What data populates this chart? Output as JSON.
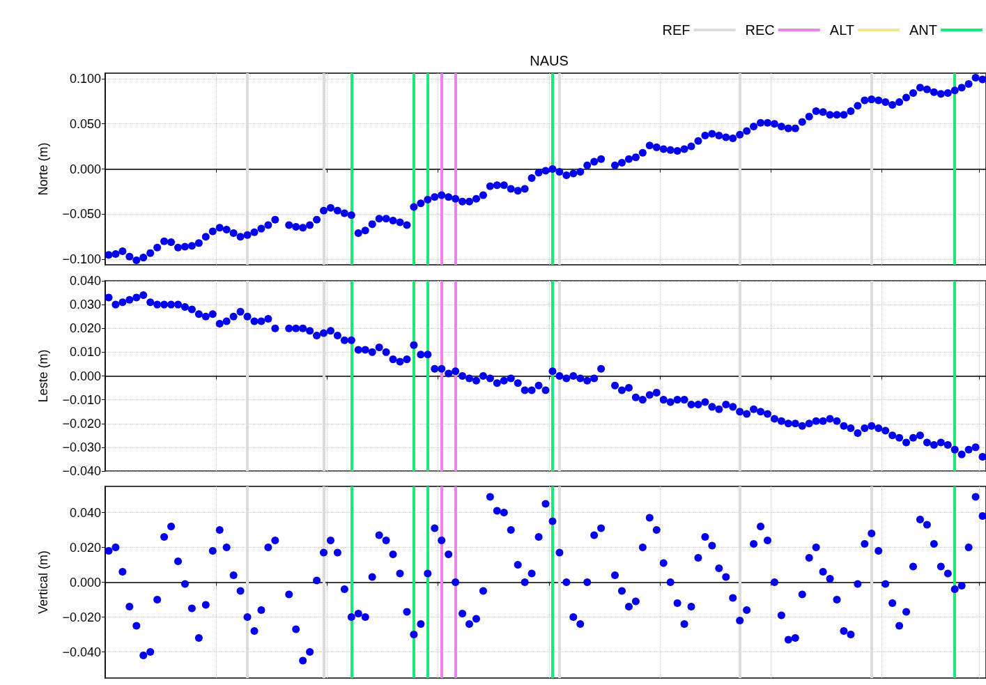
{
  "chart_data": [
    {
      "type": "scatter",
      "title": "NAUS",
      "ylabel": "Norte (m)",
      "legend": "top right",
      "grid": true,
      "marker": "circle",
      "tick_labels": "y",
      "categories": [
        null,
        null,
        null,
        null,
        null,
        null,
        null,
        null,
        null,
        null,
        null,
        null,
        null,
        null,
        null,
        null,
        null,
        null,
        null,
        null,
        null,
        null,
        null,
        null,
        null,
        null,
        null,
        null,
        null,
        null,
        null,
        null,
        null,
        null,
        null,
        null,
        null,
        null,
        null,
        null,
        null,
        null,
        null,
        null,
        null,
        null,
        null,
        null,
        null,
        null,
        null,
        null,
        null,
        null,
        null,
        null,
        null,
        null,
        null,
        null,
        null,
        null,
        null,
        null,
        null,
        null,
        null,
        null,
        null,
        null,
        null,
        null,
        null,
        null,
        null,
        null,
        null,
        null,
        null,
        null,
        null,
        null,
        null,
        null,
        null,
        null,
        null,
        null,
        null,
        null,
        null,
        null,
        null,
        null,
        null,
        null,
        null,
        null,
        null,
        null,
        null,
        null,
        null,
        null,
        null,
        null,
        null,
        null,
        null,
        null,
        null,
        null,
        null,
        null,
        null,
        null,
        null,
        null,
        null,
        null,
        null,
        null,
        null,
        null,
        null,
        null,
        null
      ],
      "ylim": [
        -0.106,
        0.106
      ],
      "yticks": [
        {
          "value": -0.1,
          "label": "−0.100"
        },
        {
          "value": -0.05,
          "label": "−0.050"
        },
        {
          "value": 0,
          "label": "0.000"
        },
        {
          "value": 0.05,
          "label": "0.050"
        },
        {
          "value": 0.1,
          "label": "0.100"
        }
      ],
      "series": [
        {
          "name": "REF",
          "type": "line",
          "color": "#dcdcdc",
          "values": [
            null,
            null,
            null,
            null,
            null,
            null,
            null,
            null,
            null,
            null,
            null,
            null,
            null,
            null,
            null,
            null,
            null,
            null,
            null,
            null,
            null,
            null,
            null,
            null,
            null,
            null,
            null,
            null,
            null,
            null,
            null,
            null,
            null,
            null,
            null,
            null,
            null,
            null,
            null,
            null,
            null,
            null,
            null,
            null,
            null,
            null,
            null,
            null,
            null,
            null,
            null,
            null,
            null,
            null,
            null,
            null,
            null,
            null,
            null,
            null,
            null,
            null,
            null,
            null,
            null,
            null,
            null,
            null,
            null,
            null,
            null,
            null,
            null,
            null,
            null,
            null,
            null,
            null,
            null,
            null,
            null,
            null,
            null,
            null,
            null,
            null,
            null,
            null,
            null,
            null,
            null,
            null,
            null,
            null,
            null,
            null,
            null,
            null,
            null,
            null,
            null,
            null,
            null,
            null,
            null,
            null,
            null,
            null,
            null,
            null,
            null,
            null,
            null,
            null,
            null,
            null,
            null,
            null,
            null,
            null,
            null,
            null,
            null,
            null,
            null,
            null,
            null
          ]
        },
        {
          "name": "REC",
          "type": "line",
          "color": "#ee82ee",
          "values": [
            null,
            null,
            null,
            null,
            null,
            null,
            null,
            null,
            null,
            null,
            null,
            null,
            null,
            null,
            null,
            null,
            null,
            null,
            null,
            null,
            null,
            null,
            null,
            null,
            null,
            null,
            null,
            null,
            null,
            null,
            null,
            null,
            null,
            null,
            null,
            null,
            null,
            null,
            null,
            null,
            null,
            null,
            null,
            null,
            null,
            null,
            null,
            null,
            null,
            null,
            null,
            null,
            null,
            null,
            null,
            null,
            null,
            null,
            null,
            null,
            null,
            null,
            null,
            null,
            null,
            null,
            null,
            null,
            null,
            null,
            null,
            null,
            null,
            null,
            null,
            null,
            null,
            null,
            null,
            null,
            null,
            null,
            null,
            null,
            null,
            null,
            null,
            null,
            null,
            null,
            null,
            null,
            null,
            null,
            null,
            null,
            null,
            null,
            null,
            null,
            null,
            null,
            null,
            null,
            null,
            null,
            null,
            null,
            null,
            null,
            null,
            null,
            null,
            null,
            null,
            null,
            null,
            null,
            null,
            null,
            null,
            null,
            null,
            null,
            null,
            null,
            null
          ]
        },
        {
          "name": "ALT",
          "type": "line",
          "color": "#f0e68c",
          "values": [
            null,
            null,
            null,
            null,
            null,
            null,
            null,
            null,
            null,
            null,
            null,
            null,
            null,
            null,
            null,
            null,
            null,
            null,
            null,
            null,
            null,
            null,
            null,
            null,
            null,
            null,
            null,
            null,
            null,
            null,
            null,
            null,
            null,
            null,
            null,
            null,
            null,
            null,
            null,
            null,
            null,
            null,
            null,
            null,
            null,
            null,
            null,
            null,
            null,
            null,
            null,
            null,
            null,
            null,
            null,
            null,
            null,
            null,
            null,
            null,
            null,
            null,
            null,
            null,
            null,
            null,
            null,
            null,
            null,
            null,
            null,
            null,
            null,
            null,
            null,
            null,
            null,
            null,
            null,
            null,
            null,
            null,
            null,
            null,
            null,
            null,
            null,
            null,
            null,
            null,
            null,
            null,
            null,
            null,
            null,
            null,
            null,
            null,
            null,
            null,
            null,
            null,
            null,
            null,
            null,
            null,
            null,
            null,
            null,
            null,
            null,
            null,
            null,
            null,
            null,
            null,
            null,
            null,
            null,
            null,
            null,
            null,
            null,
            null,
            null,
            null,
            null
          ]
        },
        {
          "name": "ANT",
          "type": "line",
          "color": "#1ee87a",
          "values": [
            null,
            null,
            null,
            null,
            null,
            null,
            null,
            null,
            null,
            null,
            null,
            null,
            null,
            null,
            null,
            null,
            null,
            null,
            null,
            null,
            null,
            null,
            null,
            null,
            null,
            null,
            null,
            null,
            null,
            null,
            null,
            null,
            null,
            null,
            null,
            null,
            null,
            null,
            null,
            null,
            null,
            null,
            null,
            null,
            null,
            null,
            null,
            null,
            null,
            null,
            null,
            null,
            null,
            null,
            null,
            null,
            null,
            null,
            null,
            null,
            null,
            null,
            null,
            null,
            null,
            null,
            null,
            null,
            null,
            null,
            null,
            null,
            null,
            null,
            null,
            null,
            null,
            null,
            null,
            null,
            null,
            null,
            null,
            null,
            null,
            null,
            null,
            null,
            null,
            null,
            null,
            null,
            null,
            null,
            null,
            null,
            null,
            null,
            null,
            null,
            null,
            null,
            null,
            null,
            null,
            null,
            null,
            null,
            null,
            null,
            null,
            null,
            null,
            null,
            null,
            null,
            null,
            null,
            null,
            null,
            null,
            null,
            null,
            null,
            null,
            null,
            null
          ]
        },
        {
          "color": "#0000ee",
          "values": [
            -0.095,
            -0.094,
            -0.091,
            -0.097,
            -0.101,
            -0.098,
            -0.093,
            -0.087,
            -0.08,
            -0.081,
            -0.087,
            -0.086,
            -0.085,
            -0.082,
            -0.075,
            -0.069,
            -0.065,
            -0.067,
            -0.071,
            -0.075,
            -0.073,
            -0.07,
            -0.066,
            -0.062,
            -0.056,
            null,
            -0.062,
            -0.064,
            -0.065,
            -0.062,
            -0.056,
            -0.046,
            -0.043,
            -0.046,
            -0.049,
            -0.051,
            -0.071,
            -0.068,
            -0.061,
            -0.055,
            -0.055,
            -0.057,
            -0.059,
            -0.062,
            -0.042,
            -0.038,
            -0.034,
            -0.031,
            -0.029,
            -0.031,
            -0.033,
            -0.036,
            -0.036,
            -0.033,
            -0.029,
            -0.019,
            -0.018,
            -0.018,
            -0.022,
            -0.024,
            -0.022,
            -0.01,
            -0.004,
            -0.002,
            0.0,
            -0.003,
            -0.007,
            -0.005,
            -0.003,
            0.004,
            0.008,
            0.011,
            null,
            0.004,
            0.007,
            0.011,
            0.013,
            0.018,
            0.026,
            0.024,
            0.022,
            0.021,
            0.02,
            0.022,
            0.025,
            0.031,
            0.037,
            0.039,
            0.037,
            0.035,
            0.034,
            0.038,
            0.042,
            0.047,
            0.051,
            0.051,
            0.05,
            0.047,
            0.045,
            0.045,
            0.052,
            0.058,
            0.064,
            0.063,
            0.06,
            0.06,
            0.06,
            0.064,
            0.07,
            0.076,
            0.077,
            0.076,
            0.074,
            0.071,
            0.074,
            0.079,
            0.084,
            0.09,
            0.088,
            0.085,
            0.083,
            0.084,
            0.087,
            0.09,
            0.094,
            0.101,
            0.099
          ]
        }
      ]
    },
    {
      "type": "scatter",
      "ylabel": "Leste (m)",
      "grid": true,
      "marker": "circle",
      "tick_labels": "y",
      "categories": [
        null,
        null,
        null,
        null,
        null,
        null,
        null,
        null,
        null,
        null,
        null,
        null,
        null,
        null,
        null,
        null,
        null,
        null,
        null,
        null,
        null,
        null,
        null,
        null,
        null,
        null,
        null,
        null,
        null,
        null,
        null,
        null,
        null,
        null,
        null,
        null,
        null,
        null,
        null,
        null,
        null,
        null,
        null,
        null,
        null,
        null,
        null,
        null,
        null,
        null,
        null,
        null,
        null,
        null,
        null,
        null,
        null,
        null,
        null,
        null,
        null,
        null,
        null,
        null,
        null,
        null,
        null,
        null,
        null,
        null,
        null,
        null,
        null,
        null,
        null,
        null,
        null,
        null,
        null,
        null,
        null,
        null,
        null,
        null,
        null,
        null,
        null,
        null,
        null,
        null,
        null,
        null,
        null,
        null,
        null,
        null,
        null,
        null,
        null,
        null,
        null,
        null,
        null,
        null,
        null,
        null,
        null,
        null,
        null,
        null,
        null,
        null,
        null,
        null,
        null,
        null,
        null,
        null,
        null,
        null,
        null,
        null,
        null,
        null,
        null,
        null,
        null
      ],
      "ylim": [
        -0.04,
        0.04
      ],
      "yticks": [
        {
          "value": -0.04,
          "label": "−0.040"
        },
        {
          "value": -0.03,
          "label": "−0.030"
        },
        {
          "value": -0.02,
          "label": "−0.020"
        },
        {
          "value": -0.01,
          "label": "−0.010"
        },
        {
          "value": 0,
          "label": "0.000"
        },
        {
          "value": 0.01,
          "label": "0.010"
        },
        {
          "value": 0.02,
          "label": "0.020"
        },
        {
          "value": 0.03,
          "label": "0.030"
        },
        {
          "value": 0.04,
          "label": "0.040"
        }
      ],
      "series": [
        {
          "color": "#0000ee",
          "values": [
            0.033,
            0.03,
            0.031,
            0.032,
            0.033,
            0.034,
            0.031,
            0.03,
            0.03,
            0.03,
            0.03,
            0.029,
            0.028,
            0.026,
            0.025,
            0.026,
            0.022,
            0.023,
            0.025,
            0.027,
            0.025,
            0.023,
            0.023,
            0.024,
            0.02,
            null,
            0.02,
            0.02,
            0.02,
            0.019,
            0.017,
            0.018,
            0.019,
            0.017,
            0.015,
            0.015,
            0.011,
            0.011,
            0.01,
            0.012,
            0.01,
            0.007,
            0.006,
            0.007,
            0.013,
            0.009,
            0.009,
            0.003,
            0.003,
            0.001,
            0.002,
            0.0,
            -0.001,
            -0.002,
            0.0,
            -0.001,
            -0.003,
            -0.002,
            -0.001,
            -0.003,
            -0.006,
            -0.006,
            -0.004,
            -0.006,
            0.002,
            0.0,
            -0.001,
            0.0,
            -0.001,
            -0.002,
            -0.001,
            0.003,
            null,
            -0.004,
            -0.006,
            -0.005,
            -0.009,
            -0.01,
            -0.008,
            -0.007,
            -0.01,
            -0.011,
            -0.01,
            -0.01,
            -0.012,
            -0.012,
            -0.011,
            -0.013,
            -0.014,
            -0.012,
            -0.013,
            -0.015,
            -0.016,
            -0.014,
            -0.015,
            -0.016,
            -0.018,
            -0.019,
            -0.02,
            -0.02,
            -0.021,
            -0.02,
            -0.019,
            -0.019,
            -0.018,
            -0.019,
            -0.021,
            -0.022,
            -0.024,
            -0.022,
            -0.021,
            -0.022,
            -0.023,
            -0.025,
            -0.026,
            -0.028,
            -0.026,
            -0.025,
            -0.028,
            -0.029,
            -0.028,
            -0.029,
            -0.031,
            -0.033,
            -0.031,
            -0.03,
            -0.034
          ]
        }
      ]
    },
    {
      "type": "scatter",
      "ylabel": "Vertical (m)",
      "grid": true,
      "marker": "circle",
      "tick_labels": "y",
      "categories": [
        null,
        null,
        null,
        null,
        null,
        null,
        null,
        null,
        null,
        null,
        null,
        null,
        null,
        null,
        null,
        null,
        null,
        null,
        null,
        null,
        null,
        null,
        null,
        null,
        null,
        null,
        null,
        null,
        null,
        null,
        null,
        null,
        null,
        null,
        null,
        null,
        null,
        null,
        null,
        null,
        null,
        null,
        null,
        null,
        null,
        null,
        null,
        null,
        null,
        null,
        null,
        null,
        null,
        null,
        null,
        null,
        null,
        null,
        null,
        null,
        null,
        null,
        null,
        null,
        null,
        null,
        null,
        null,
        null,
        null,
        null,
        null,
        null,
        null,
        null,
        null,
        null,
        null,
        null,
        null,
        null,
        null,
        null,
        null,
        null,
        null,
        null,
        null,
        null,
        null,
        null,
        null,
        null,
        null,
        null,
        null,
        null,
        null,
        null,
        null,
        null,
        null,
        null,
        null,
        null,
        null,
        null,
        null,
        null,
        null,
        null,
        null,
        null,
        null,
        null,
        null,
        null,
        null,
        null,
        null,
        null,
        null,
        null,
        null,
        null,
        null,
        null
      ],
      "ylim": [
        -0.055,
        0.055
      ],
      "yticks": [
        {
          "value": -0.04,
          "label": "−0.040"
        },
        {
          "value": -0.02,
          "label": "−0.020"
        },
        {
          "value": 0,
          "label": "0.000"
        },
        {
          "value": 0.02,
          "label": "0.020"
        },
        {
          "value": 0.04,
          "label": "0.040"
        }
      ],
      "series": [
        {
          "color": "#0000ee",
          "values": [
            0.018,
            0.02,
            0.006,
            -0.014,
            -0.025,
            -0.042,
            -0.04,
            -0.01,
            0.026,
            0.032,
            0.012,
            -0.001,
            -0.015,
            -0.032,
            -0.013,
            0.018,
            0.03,
            0.02,
            0.004,
            -0.005,
            -0.02,
            -0.028,
            -0.016,
            0.02,
            0.024,
            null,
            -0.007,
            -0.027,
            -0.045,
            -0.04,
            0.001,
            0.017,
            0.024,
            0.017,
            -0.004,
            -0.02,
            -0.018,
            -0.02,
            0.003,
            0.027,
            0.024,
            0.016,
            0.005,
            -0.017,
            -0.03,
            -0.024,
            0.005,
            0.031,
            0.024,
            0.016,
            0.0,
            -0.018,
            -0.024,
            -0.021,
            -0.005,
            0.049,
            0.041,
            0.04,
            0.03,
            0.01,
            0.0,
            0.005,
            0.026,
            0.045,
            0.035,
            0.017,
            0.0,
            -0.02,
            -0.024,
            0.0,
            0.027,
            0.031,
            null,
            0.004,
            -0.005,
            -0.014,
            -0.011,
            0.02,
            0.037,
            0.03,
            0.011,
            0.0,
            -0.012,
            -0.024,
            -0.014,
            0.014,
            0.026,
            0.021,
            0.008,
            0.003,
            -0.009,
            -0.022,
            -0.016,
            0.022,
            0.032,
            0.024,
            0.0,
            -0.019,
            -0.033,
            -0.032,
            -0.007,
            0.014,
            0.02,
            0.006,
            0.002,
            -0.01,
            -0.028,
            -0.03,
            -0.001,
            0.022,
            0.028,
            0.018,
            -0.001,
            -0.012,
            -0.025,
            -0.017,
            0.009,
            0.036,
            0.033,
            0.022,
            0.009,
            0.005,
            -0.004,
            -0.002,
            0.02,
            0.049,
            0.038
          ]
        }
      ]
    }
  ]
}
